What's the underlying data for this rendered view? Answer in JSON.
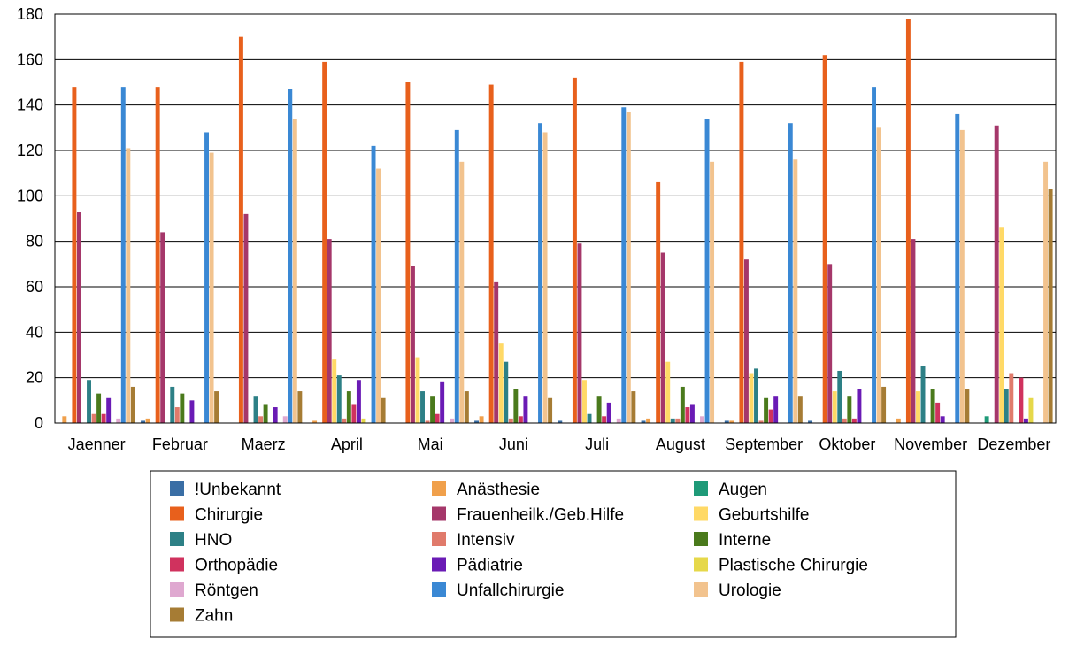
{
  "chart_data": {
    "type": "bar",
    "title": "",
    "xlabel": "",
    "ylabel": "",
    "ylim": [
      0,
      180
    ],
    "yticks": [
      0,
      20,
      40,
      60,
      80,
      100,
      120,
      140,
      160,
      180
    ],
    "grid": true,
    "legend_position": "bottom",
    "categories": [
      "Jaenner",
      "Februar",
      "Maerz",
      "April",
      "Mai",
      "Juni",
      "Juli",
      "August",
      "September",
      "Oktober",
      "November",
      "Dezember"
    ],
    "series": [
      {
        "name": "!Unbekannt",
        "color": "#3a6ea5",
        "values": [
          0,
          1,
          0,
          0,
          0,
          1,
          1,
          1,
          1,
          1,
          0,
          0
        ]
      },
      {
        "name": "Anästhesie",
        "color": "#f0a04b",
        "values": [
          3,
          2,
          0,
          1,
          0,
          3,
          0,
          2,
          1,
          0,
          2,
          0
        ]
      },
      {
        "name": "Augen",
        "color": "#1e9a78",
        "values": [
          0,
          0,
          0,
          0,
          0,
          0,
          0,
          0,
          0,
          0,
          0,
          3
        ]
      },
      {
        "name": "Chirurgie",
        "color": "#e8601c",
        "values": [
          148,
          148,
          170,
          159,
          150,
          149,
          152,
          106,
          159,
          162,
          178,
          0
        ]
      },
      {
        "name": "Frauenheilk./Geb.Hilfe",
        "color": "#a5376a",
        "values": [
          93,
          84,
          92,
          81,
          69,
          62,
          79,
          75,
          72,
          70,
          81,
          131
        ]
      },
      {
        "name": "Geburtshilfe",
        "color": "#ffd966",
        "values": [
          0,
          0,
          0,
          28,
          29,
          35,
          19,
          27,
          22,
          14,
          14,
          86
        ]
      },
      {
        "name": "HNO",
        "color": "#2d8086",
        "values": [
          19,
          16,
          12,
          21,
          14,
          27,
          4,
          2,
          24,
          23,
          25,
          15
        ]
      },
      {
        "name": "Intensiv",
        "color": "#e07a6b",
        "values": [
          4,
          7,
          3,
          2,
          1,
          2,
          0,
          2,
          1,
          2,
          0,
          22
        ]
      },
      {
        "name": "Interne",
        "color": "#4a7a1c",
        "values": [
          13,
          13,
          8,
          14,
          12,
          15,
          12,
          16,
          11,
          12,
          15,
          0
        ]
      },
      {
        "name": "Orthopädie",
        "color": "#d0325e",
        "values": [
          4,
          0,
          0,
          8,
          4,
          3,
          3,
          7,
          6,
          2,
          9,
          20
        ]
      },
      {
        "name": "Pädiatrie",
        "color": "#6a1bb5",
        "values": [
          11,
          10,
          7,
          19,
          18,
          12,
          9,
          8,
          12,
          15,
          3,
          2
        ]
      },
      {
        "name": "Plastische Chirurgie",
        "color": "#e6d84a",
        "values": [
          0,
          0,
          0,
          2,
          0,
          0,
          0,
          0,
          0,
          0,
          0,
          11
        ]
      },
      {
        "name": "Röntgen",
        "color": "#dfa8d0",
        "values": [
          2,
          0,
          3,
          0,
          2,
          0,
          2,
          3,
          0,
          0,
          0,
          0
        ]
      },
      {
        "name": "Unfallchirurgie",
        "color": "#3a88d4",
        "values": [
          148,
          128,
          147,
          122,
          129,
          132,
          139,
          134,
          132,
          148,
          136,
          0
        ]
      },
      {
        "name": "Urologie",
        "color": "#f2c38e",
        "values": [
          121,
          119,
          134,
          112,
          115,
          128,
          137,
          115,
          116,
          130,
          129,
          115
        ]
      },
      {
        "name": "Zahn",
        "color": "#a67c34",
        "values": [
          16,
          14,
          14,
          11,
          14,
          11,
          14,
          0,
          12,
          16,
          15,
          103
        ]
      }
    ]
  }
}
